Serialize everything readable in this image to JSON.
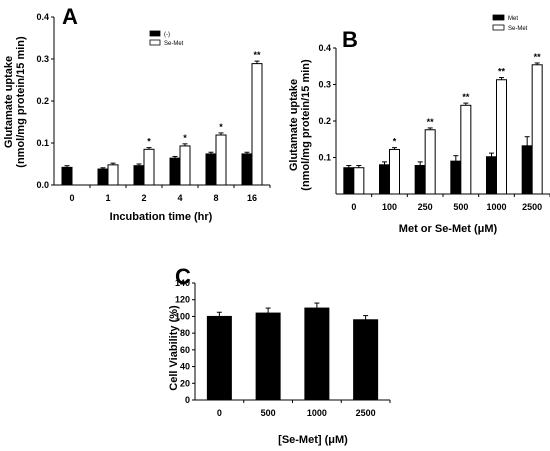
{
  "chart_data": [
    {
      "panel": "A",
      "type": "bar",
      "xlabel": "Incubation time (hr)",
      "ylabel": [
        "Glutamate uptake",
        "(nmol/mg protein/15 min)"
      ],
      "categories": [
        "0",
        "1",
        "2",
        "4",
        "8",
        "16"
      ],
      "ylim": [
        0,
        0.4
      ],
      "yticks": [
        "0.0",
        "0.1",
        "0.2",
        "0.3",
        "0.4"
      ],
      "ytick_values": [
        0,
        0.1,
        0.2,
        0.3,
        0.4
      ],
      "legend_position": "top-right",
      "series": [
        {
          "name": "(-)",
          "color": "#000000",
          "values": [
            0.042,
            0.038,
            0.046,
            0.064,
            0.074,
            0.074
          ],
          "errors": [
            0.004,
            0.003,
            0.004,
            0.004,
            0.004,
            0.004
          ]
        },
        {
          "name": "Se-Met",
          "color": "#ffffff",
          "values": [
            null,
            0.048,
            0.085,
            0.093,
            0.119,
            0.289
          ],
          "errors": [
            0,
            0.004,
            0.004,
            0.005,
            0.005,
            0.006
          ]
        }
      ],
      "significance": [
        "",
        "",
        "*",
        "*",
        "*",
        "**"
      ]
    },
    {
      "panel": "B",
      "type": "bar",
      "xlabel": "Met or Se-Met (μM)",
      "ylabel": [
        "Glutamate uptake",
        "(nmol/mg protein/15 min)"
      ],
      "categories": [
        "0",
        "100",
        "250",
        "500",
        "1000",
        "2500"
      ],
      "ylim": [
        0,
        0.4
      ],
      "yticks": [
        "0.1",
        "0.2",
        "0.3",
        "0.4"
      ],
      "ytick_values": [
        0.1,
        0.2,
        0.3,
        0.4
      ],
      "legend_position": "top-left",
      "series": [
        {
          "name": "Met",
          "color": "#000000",
          "values": [
            0.072,
            0.08,
            0.078,
            0.09,
            0.102,
            0.132
          ],
          "errors": [
            0.006,
            0.008,
            0.01,
            0.015,
            0.01,
            0.025
          ]
        },
        {
          "name": "Se-Met",
          "color": "#ffffff",
          "values": [
            0.072,
            0.122,
            0.176,
            0.243,
            0.313,
            0.354
          ],
          "errors": [
            0.006,
            0.005,
            0.005,
            0.006,
            0.006,
            0.005
          ]
        }
      ],
      "significance": [
        "",
        "*",
        "**",
        "**",
        "**",
        "**"
      ]
    },
    {
      "panel": "C",
      "type": "bar",
      "xlabel": "[Se-Met] (μM)",
      "ylabel": "Cell Viability (%)",
      "categories": [
        "0",
        "500",
        "1000",
        "2500"
      ],
      "ylim": [
        0,
        140
      ],
      "yticks": [
        "0",
        "20",
        "40",
        "60",
        "80",
        "100",
        "120",
        "140"
      ],
      "ytick_values": [
        0,
        20,
        40,
        60,
        80,
        100,
        120,
        140
      ],
      "series": [
        {
          "name": "",
          "color": "#000000",
          "values": [
            100,
            104,
            110,
            96
          ],
          "errors": [
            5,
            6,
            6,
            5
          ]
        }
      ]
    }
  ]
}
